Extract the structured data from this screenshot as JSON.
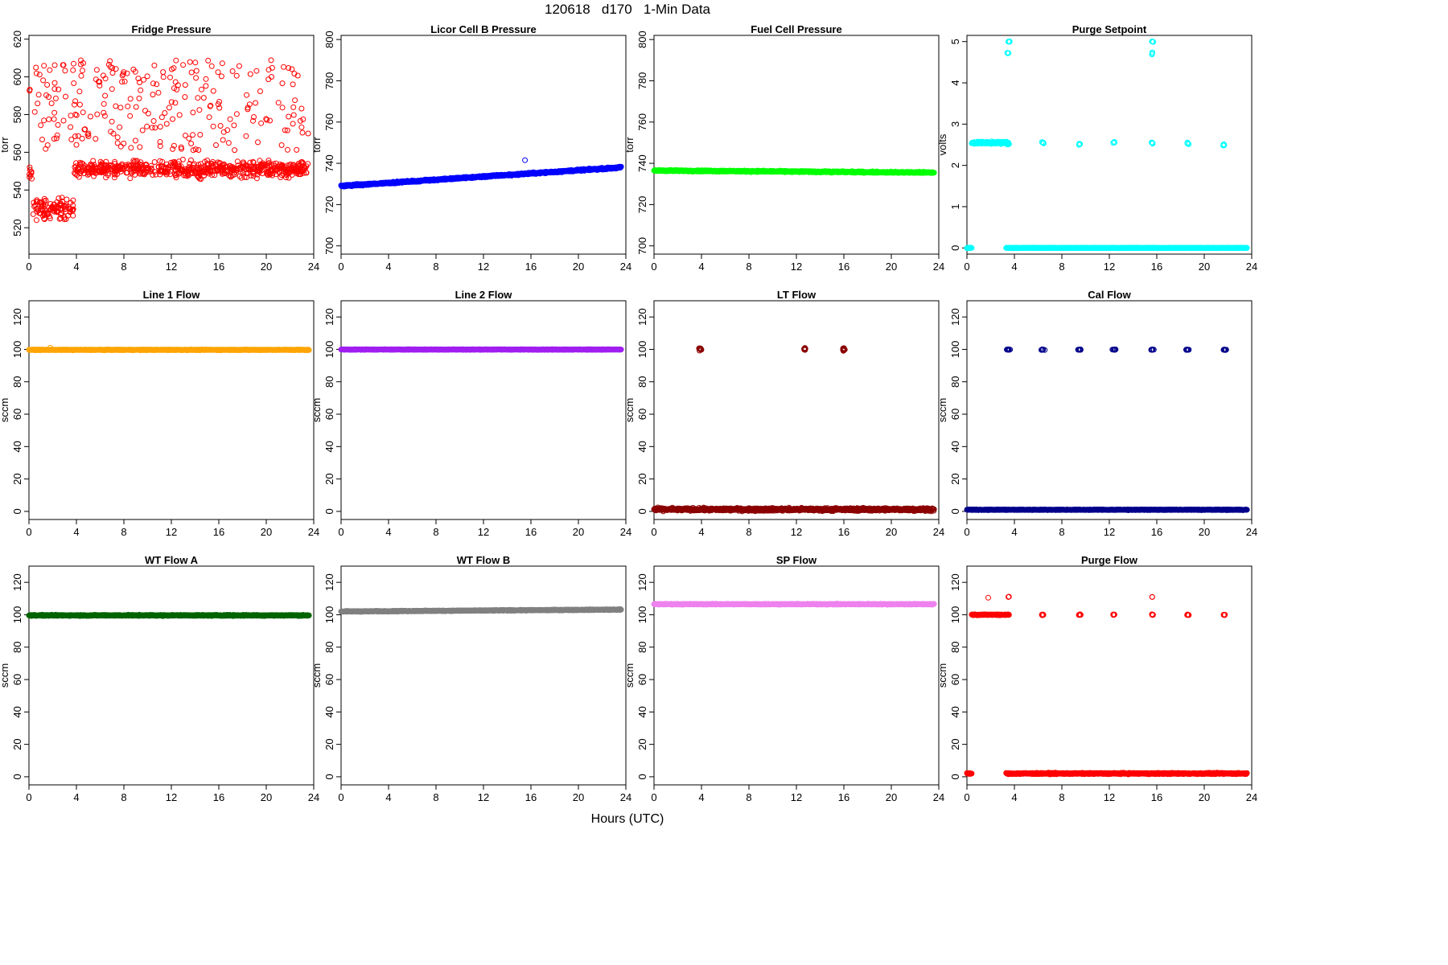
{
  "page": {
    "title": "120618   d170   1-Min Data",
    "xlabel": "Hours (UTC)"
  },
  "chart_data": [
    {
      "type": "scatter",
      "title": "Fridge Pressure",
      "ylabel": "torr",
      "color": "#ff0000",
      "xlim": [
        0,
        24
      ],
      "ylim": [
        506,
        622
      ],
      "xticks": [
        0,
        4,
        8,
        12,
        16,
        20,
        24
      ],
      "yticks": [
        520,
        540,
        560,
        580,
        600,
        620
      ],
      "series": [
        {
          "kind": "noisy",
          "segments": [
            {
              "x0": 0,
              "x1": 0.3,
              "y": 548,
              "spread": 6
            },
            {
              "x0": 0.3,
              "x1": 3.8,
              "y": 530,
              "spread": 8
            },
            {
              "x0": 3.8,
              "x1": 23.6,
              "y": 551,
              "spread": 6
            },
            {
              "x0": 0,
              "x1": 23.6,
              "y": 585,
              "spread": 24,
              "frac": 0.35
            }
          ]
        }
      ]
    },
    {
      "type": "scatter",
      "title": "Licor Cell B Pressure",
      "ylabel": "torr",
      "color": "#0000ff",
      "xlim": [
        0,
        24
      ],
      "ylim": [
        696,
        802
      ],
      "xticks": [
        0,
        4,
        8,
        12,
        16,
        20,
        24
      ],
      "yticks": [
        700,
        720,
        740,
        760,
        780,
        800
      ],
      "series": [
        {
          "kind": "linear",
          "x0": 0,
          "x1": 23.6,
          "y0": 729,
          "y1": 738,
          "spread": 0.6,
          "outliers": [
            [
              15.5,
              741.5
            ]
          ]
        }
      ]
    },
    {
      "type": "scatter",
      "title": "Fuel Cell Pressure",
      "ylabel": "torr",
      "color": "#00ff00",
      "xlim": [
        0,
        24
      ],
      "ylim": [
        696,
        802
      ],
      "xticks": [
        0,
        4,
        8,
        12,
        16,
        20,
        24
      ],
      "yticks": [
        700,
        720,
        740,
        760,
        780,
        800
      ],
      "series": [
        {
          "kind": "linear",
          "x0": 0,
          "x1": 23.6,
          "y0": 736.5,
          "y1": 735.5,
          "spread": 0.5
        }
      ]
    },
    {
      "type": "scatter",
      "title": "Purge Setpoint",
      "ylabel": "volts",
      "color": "#00ffff",
      "xlim": [
        0,
        24
      ],
      "ylim": [
        -0.15,
        5.15
      ],
      "xticks": [
        0,
        4,
        8,
        12,
        16,
        20,
        24
      ],
      "yticks": [
        0,
        1,
        2,
        3,
        4,
        5
      ],
      "series": [
        {
          "kind": "mixed",
          "lines": [
            {
              "x0": 0,
              "x1": 0.4,
              "y": 0,
              "spread": 0.01
            },
            {
              "x0": 3.3,
              "x1": 23.6,
              "y": 0,
              "spread": 0.01
            },
            {
              "x0": 0.4,
              "x1": 3.5,
              "y": 2.55,
              "spread": 0.04
            }
          ],
          "clusters": [
            {
              "x": 3.5,
              "y": 2.55,
              "n": 6,
              "sx": 0.15,
              "sy": 0.08
            },
            {
              "x": 6.4,
              "y": 2.55,
              "n": 6,
              "sx": 0.15,
              "sy": 0.04
            },
            {
              "x": 9.5,
              "y": 2.52,
              "n": 6,
              "sx": 0.15,
              "sy": 0.05
            },
            {
              "x": 12.4,
              "y": 2.55,
              "n": 6,
              "sx": 0.15,
              "sy": 0.04
            },
            {
              "x": 15.6,
              "y": 2.55,
              "n": 6,
              "sx": 0.15,
              "sy": 0.07
            },
            {
              "x": 18.6,
              "y": 2.53,
              "n": 6,
              "sx": 0.15,
              "sy": 0.04
            },
            {
              "x": 21.7,
              "y": 2.5,
              "n": 6,
              "sx": 0.15,
              "sy": 0.05
            },
            {
              "x": 3.55,
              "y": 5.0,
              "n": 4,
              "sx": 0.1,
              "sy": 0.01
            },
            {
              "x": 3.45,
              "y": 4.72,
              "n": 3,
              "sx": 0.08,
              "sy": 0.05
            },
            {
              "x": 15.65,
              "y": 5.0,
              "n": 3,
              "sx": 0.08,
              "sy": 0.01
            },
            {
              "x": 15.6,
              "y": 4.72,
              "n": 3,
              "sx": 0.08,
              "sy": 0.05
            }
          ]
        }
      ]
    },
    {
      "type": "scatter",
      "title": "Line 1 Flow",
      "ylabel": "sccm",
      "color": "#ffa500",
      "xlim": [
        0,
        24
      ],
      "ylim": [
        -5,
        130
      ],
      "xticks": [
        0,
        4,
        8,
        12,
        16,
        20,
        24
      ],
      "yticks": [
        0,
        20,
        40,
        60,
        80,
        100,
        120
      ],
      "series": [
        {
          "kind": "linear",
          "x0": 0,
          "x1": 23.6,
          "y0": 99.7,
          "y1": 99.7,
          "spread": 0.3,
          "outliers": [
            [
              1.8,
              101
            ]
          ]
        }
      ]
    },
    {
      "type": "scatter",
      "title": "Line 2 Flow",
      "ylabel": "sccm",
      "color": "#a020f0",
      "xlim": [
        0,
        24
      ],
      "ylim": [
        -5,
        130
      ],
      "xticks": [
        0,
        4,
        8,
        12,
        16,
        20,
        24
      ],
      "yticks": [
        0,
        20,
        40,
        60,
        80,
        100,
        120
      ],
      "series": [
        {
          "kind": "linear",
          "x0": 0,
          "x1": 23.6,
          "y0": 99.9,
          "y1": 99.9,
          "spread": 0.3
        }
      ]
    },
    {
      "type": "scatter",
      "title": "LT Flow",
      "ylabel": "sccm",
      "color": "#8b0000",
      "xlim": [
        0,
        24
      ],
      "ylim": [
        -5,
        130
      ],
      "xticks": [
        0,
        4,
        8,
        12,
        16,
        20,
        24
      ],
      "yticks": [
        0,
        20,
        40,
        60,
        80,
        100,
        120
      ],
      "series": [
        {
          "kind": "mixed",
          "lines": [
            {
              "x0": 0,
              "x1": 23.6,
              "y": 1.2,
              "spread": 1.3
            }
          ],
          "clusters": [
            {
              "x": 3.9,
              "y": 100,
              "n": 14,
              "sx": 0.15,
              "sy": 1.2
            },
            {
              "x": 12.7,
              "y": 100,
              "n": 12,
              "sx": 0.12,
              "sy": 1.2
            },
            {
              "x": 16,
              "y": 100,
              "n": 12,
              "sx": 0.12,
              "sy": 1.2
            }
          ]
        }
      ]
    },
    {
      "type": "scatter",
      "title": "Cal Flow",
      "ylabel": "sccm",
      "color": "#00008b",
      "xlim": [
        0,
        24
      ],
      "ylim": [
        -5,
        130
      ],
      "xticks": [
        0,
        4,
        8,
        12,
        16,
        20,
        24
      ],
      "yticks": [
        0,
        20,
        40,
        60,
        80,
        100,
        120
      ],
      "series": [
        {
          "kind": "mixed",
          "lines": [
            {
              "x0": 0,
              "x1": 23.6,
              "y": 1,
              "spread": 0.3
            }
          ],
          "clusters": [
            {
              "x": 3.5,
              "y": 99.8,
              "n": 10,
              "sx": 0.22,
              "sy": 0.3
            },
            {
              "x": 6.4,
              "y": 99.8,
              "n": 10,
              "sx": 0.22,
              "sy": 0.3
            },
            {
              "x": 9.5,
              "y": 99.8,
              "n": 10,
              "sx": 0.22,
              "sy": 0.3
            },
            {
              "x": 12.4,
              "y": 99.8,
              "n": 10,
              "sx": 0.22,
              "sy": 0.3
            },
            {
              "x": 15.6,
              "y": 99.8,
              "n": 10,
              "sx": 0.22,
              "sy": 0.3
            },
            {
              "x": 18.6,
              "y": 99.8,
              "n": 10,
              "sx": 0.22,
              "sy": 0.3
            },
            {
              "x": 21.7,
              "y": 99.8,
              "n": 10,
              "sx": 0.22,
              "sy": 0.3
            }
          ]
        }
      ]
    },
    {
      "type": "scatter",
      "title": "WT Flow A",
      "ylabel": "sccm",
      "color": "#006400",
      "xlim": [
        0,
        24
      ],
      "ylim": [
        -5,
        130
      ],
      "xticks": [
        0,
        4,
        8,
        12,
        16,
        20,
        24
      ],
      "yticks": [
        0,
        20,
        40,
        60,
        80,
        100,
        120
      ],
      "series": [
        {
          "kind": "linear",
          "x0": 0,
          "x1": 23.6,
          "y0": 99.6,
          "y1": 99.6,
          "spread": 0.5
        }
      ]
    },
    {
      "type": "scatter",
      "title": "WT Flow B",
      "ylabel": "sccm",
      "color": "#808080",
      "xlim": [
        0,
        24
      ],
      "ylim": [
        -5,
        130
      ],
      "xticks": [
        0,
        4,
        8,
        12,
        16,
        20,
        24
      ],
      "yticks": [
        0,
        20,
        40,
        60,
        80,
        100,
        120
      ],
      "series": [
        {
          "kind": "linear",
          "x0": 0,
          "x1": 23.6,
          "y0": 102,
          "y1": 103.2,
          "spread": 0.4
        }
      ]
    },
    {
      "type": "scatter",
      "title": "SP Flow",
      "ylabel": "sccm",
      "color": "#ee82ee",
      "xlim": [
        0,
        24
      ],
      "ylim": [
        -5,
        130
      ],
      "xticks": [
        0,
        4,
        8,
        12,
        16,
        20,
        24
      ],
      "yticks": [
        0,
        20,
        40,
        60,
        80,
        100,
        120
      ],
      "series": [
        {
          "kind": "linear",
          "x0": 0,
          "x1": 23.6,
          "y0": 106.5,
          "y1": 106.5,
          "spread": 0.4
        }
      ]
    },
    {
      "type": "scatter",
      "title": "Purge Flow",
      "ylabel": "sccm",
      "color": "#ff0000",
      "xlim": [
        0,
        24
      ],
      "ylim": [
        -5,
        130
      ],
      "xticks": [
        0,
        4,
        8,
        12,
        16,
        20,
        24
      ],
      "yticks": [
        0,
        20,
        40,
        60,
        80,
        100,
        120
      ],
      "series": [
        {
          "kind": "mixed",
          "lines": [
            {
              "x0": 0,
              "x1": 0.4,
              "y": 2,
              "spread": 0.5
            },
            {
              "x0": 3.3,
              "x1": 23.6,
              "y": 2,
              "spread": 0.6
            },
            {
              "x0": 0.4,
              "x1": 3.5,
              "y": 100,
              "spread": 0.4
            }
          ],
          "clusters": [
            {
              "x": 3.5,
              "y": 100,
              "n": 6,
              "sx": 0.15,
              "sy": 0.4
            },
            {
              "x": 6.4,
              "y": 100,
              "n": 6,
              "sx": 0.15,
              "sy": 0.4
            },
            {
              "x": 9.5,
              "y": 100,
              "n": 6,
              "sx": 0.15,
              "sy": 0.4
            },
            {
              "x": 12.4,
              "y": 100,
              "n": 6,
              "sx": 0.15,
              "sy": 0.4
            },
            {
              "x": 15.6,
              "y": 100,
              "n": 8,
              "sx": 0.15,
              "sy": 0.4
            },
            {
              "x": 18.6,
              "y": 100,
              "n": 6,
              "sx": 0.15,
              "sy": 0.4
            },
            {
              "x": 21.7,
              "y": 100,
              "n": 6,
              "sx": 0.15,
              "sy": 0.4
            },
            {
              "x": 1.8,
              "y": 110.5,
              "n": 1,
              "sx": 0,
              "sy": 0
            },
            {
              "x": 3.5,
              "y": 111,
              "n": 3,
              "sx": 0.1,
              "sy": 0.3
            },
            {
              "x": 15.6,
              "y": 111,
              "n": 2,
              "sx": 0.05,
              "sy": 0.5
            }
          ]
        }
      ]
    }
  ]
}
